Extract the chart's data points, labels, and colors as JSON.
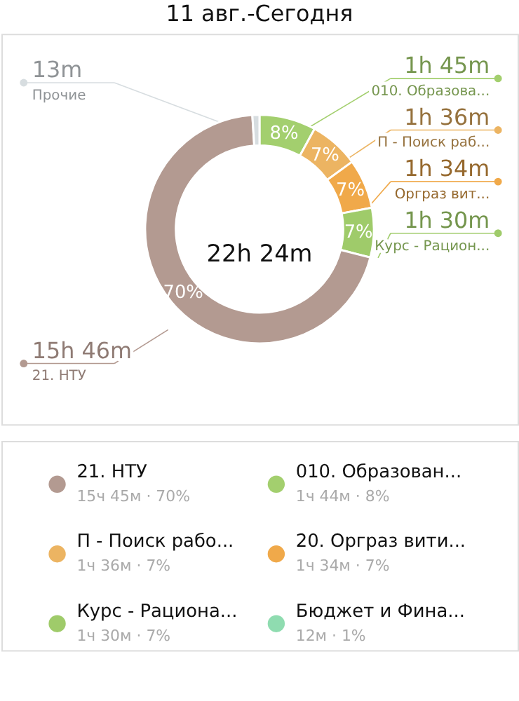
{
  "chart_data": [
    {
      "type": "donut",
      "title": "11 авг.-Сегодня",
      "categories": [
        "010. Образова...",
        "П - Поиск раб...",
        "Орграз вит...",
        "Курс - Рацион...",
        "21. НТУ",
        "Прочие"
      ],
      "values": [
        8,
        7,
        7,
        7,
        70,
        1
      ],
      "value_labels": [
        "8%",
        "7%",
        "7%",
        "7%",
        "70%",
        null
      ],
      "legend": "right",
      "colors": [
        "#a3cf6e",
        "#ecb462",
        "#f0a94a",
        "#9fcb6a",
        "#b39a91",
        "#d7dde0"
      ],
      "annotations": [
        {
          "text": "22h 24m"
        },
        {
          "text": "1h 45m",
          "x": "010. Образова..."
        },
        {
          "text": "1h 36m",
          "x": "П - Поиск раб..."
        },
        {
          "text": "1h 34m",
          "x": "Орграз вит..."
        },
        {
          "text": "1h 30m",
          "x": "Курс - Рацион..."
        },
        {
          "text": "15h 46m",
          "x": "21. НТУ"
        },
        {
          "text": "13m",
          "x": "Прочие"
        }
      ]
    },
    {
      "type": "other",
      "categories": [
        "21. НТУ",
        "010. Образован...",
        "П - Поиск рабо...",
        "20. Орграз вити...",
        "Курс - Рациона...",
        "Бюджет и Фина..."
      ],
      "value_labels": [
        "15ч 45м · 70%",
        "1ч 44м · 8%",
        "1ч 36м · 7%",
        "1ч 34м · 7%",
        "1ч 30м · 7%",
        "12м · 1%"
      ],
      "colors": [
        "#b39a91",
        "#a3cf6e",
        "#ecb462",
        "#f0a94a",
        "#9fcb6a",
        "#8fdcb0"
      ]
    }
  ]
}
